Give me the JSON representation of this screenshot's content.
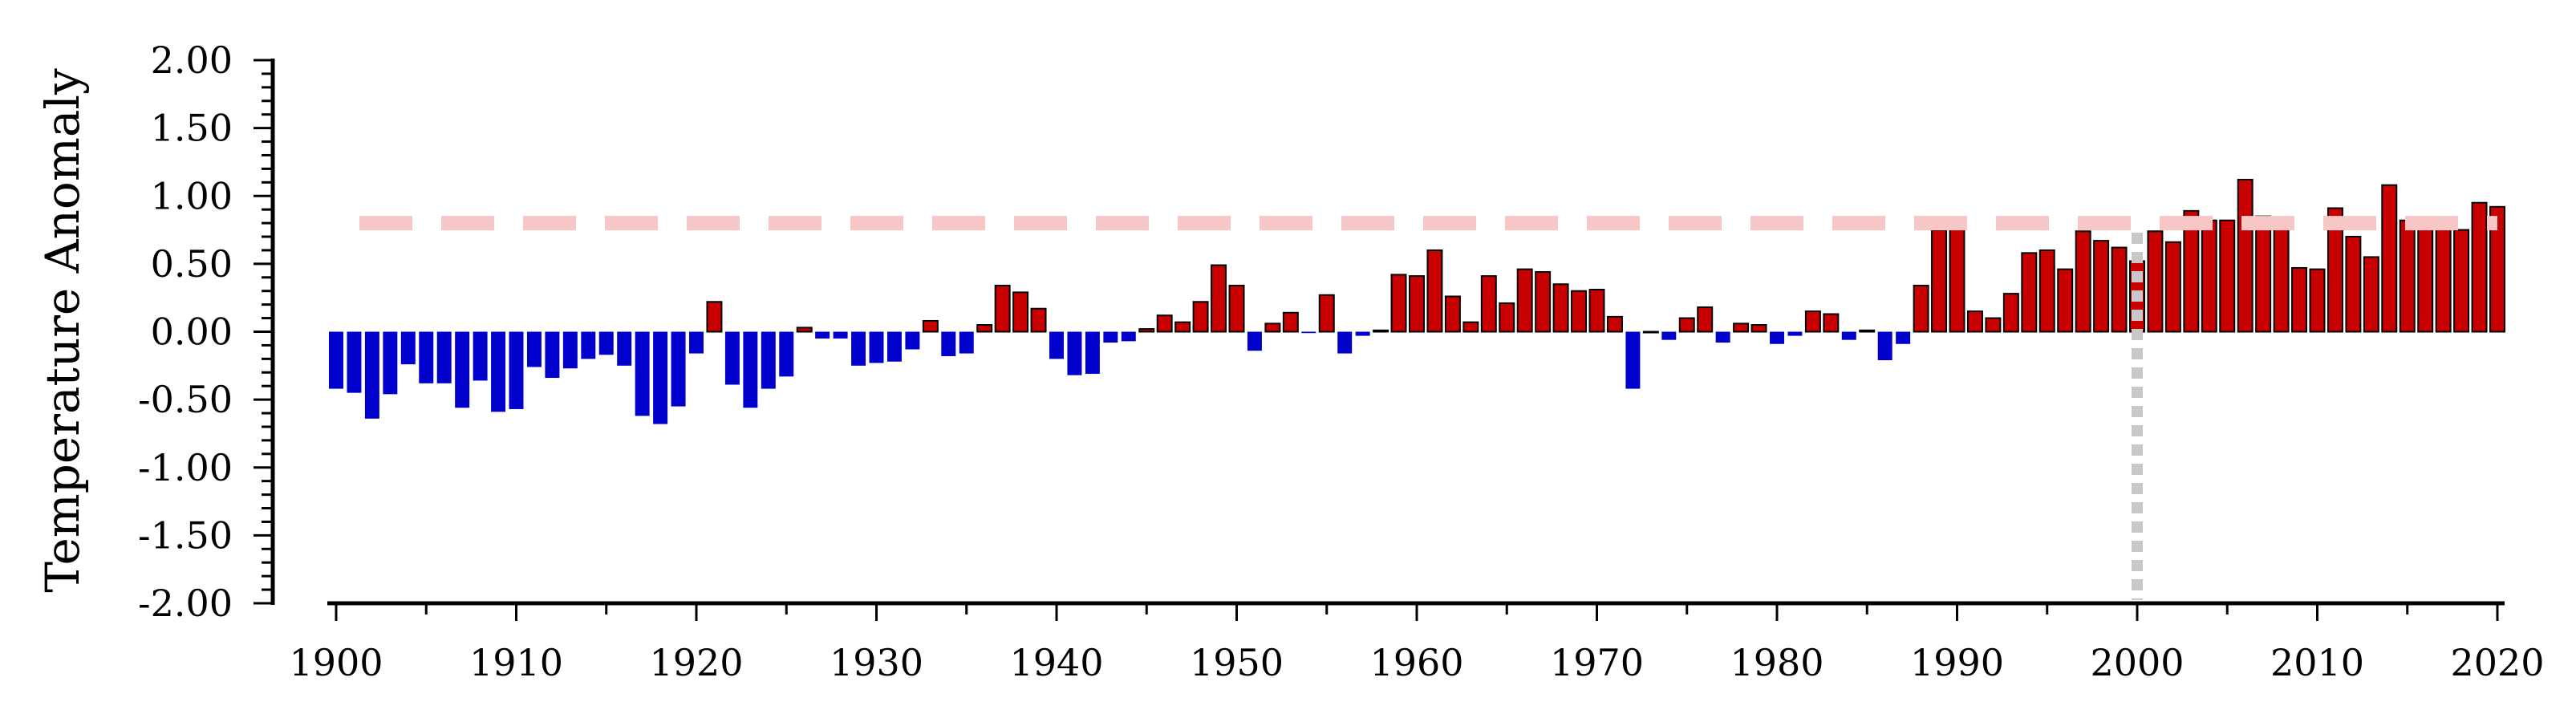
{
  "chart_data": {
    "type": "bar",
    "title": "",
    "xlabel": "",
    "ylabel": "Temperature Anomaly",
    "x_start": 1900,
    "x_end": 2020,
    "xlim": [
      1900,
      2020
    ],
    "ylim": [
      -2.0,
      2.0
    ],
    "xticks": [
      1900,
      1910,
      1920,
      1930,
      1940,
      1950,
      1960,
      1970,
      1980,
      1990,
      2000,
      2010,
      2020
    ],
    "xtick_labels": [
      "1900",
      "1910",
      "1920",
      "1930",
      "1940",
      "1950",
      "1960",
      "1970",
      "1980",
      "1990",
      "2000",
      "2010",
      "2020"
    ],
    "yticks": [
      2.0,
      1.5,
      1.0,
      0.5,
      0.0,
      -0.5,
      -1.0,
      -1.5,
      -2.0
    ],
    "ytick_labels": [
      "2.00",
      "1.50",
      "1.00",
      "0.50",
      "0.00",
      "-0.50",
      "-1.00",
      "-1.50",
      "-2.00"
    ],
    "grid": false,
    "legend": "none",
    "colors": {
      "positive": "#c80000",
      "negative": "#0000cc",
      "bar_edge": "#000000",
      "reference_line": "#f7c6c6",
      "marker_line": "#c8c8c8"
    },
    "reference_line_y": 0.8,
    "marker_line_x": 2000,
    "series": [
      {
        "values": [
          -0.42,
          -0.45,
          -0.64,
          -0.46,
          -0.24,
          -0.38,
          -0.38,
          -0.56,
          -0.36,
          -0.59,
          -0.57,
          -0.26,
          -0.34,
          -0.27,
          -0.2,
          -0.17,
          -0.25,
          -0.62,
          -0.68,
          -0.55,
          -0.16,
          0.22,
          -0.39,
          -0.56,
          -0.42,
          -0.33,
          0.03,
          -0.05,
          -0.05,
          -0.25,
          -0.23,
          -0.22,
          -0.13,
          0.08,
          -0.18,
          -0.16,
          0.05,
          0.34,
          0.29,
          0.17,
          -0.2,
          -0.32,
          -0.31,
          -0.08,
          -0.07,
          0.02,
          0.12,
          0.07,
          0.22,
          0.49,
          0.34,
          -0.14,
          0.06,
          0.14,
          -0.01,
          0.27,
          -0.16,
          -0.03,
          0.01,
          0.42,
          0.41,
          0.6,
          0.26,
          0.07,
          0.41,
          0.21,
          0.46,
          0.44,
          0.35,
          0.3,
          0.31,
          0.11,
          -0.42,
          0.0,
          -0.06,
          0.1,
          0.18,
          -0.08,
          0.06,
          0.05,
          -0.09,
          -0.03,
          0.15,
          0.13,
          -0.06,
          0.01,
          -0.21,
          -0.09,
          0.34,
          0.75,
          0.8,
          0.15,
          0.1,
          0.28,
          0.58,
          0.6,
          0.46,
          0.74,
          0.67,
          0.62,
          0.52,
          0.74,
          0.66,
          0.89,
          0.82,
          0.82,
          1.12,
          0.85,
          0.76,
          0.47,
          0.46,
          0.91,
          0.7,
          0.55,
          1.08,
          0.82,
          0.76,
          0.77,
          0.75,
          0.95,
          0.92
        ]
      }
    ]
  }
}
